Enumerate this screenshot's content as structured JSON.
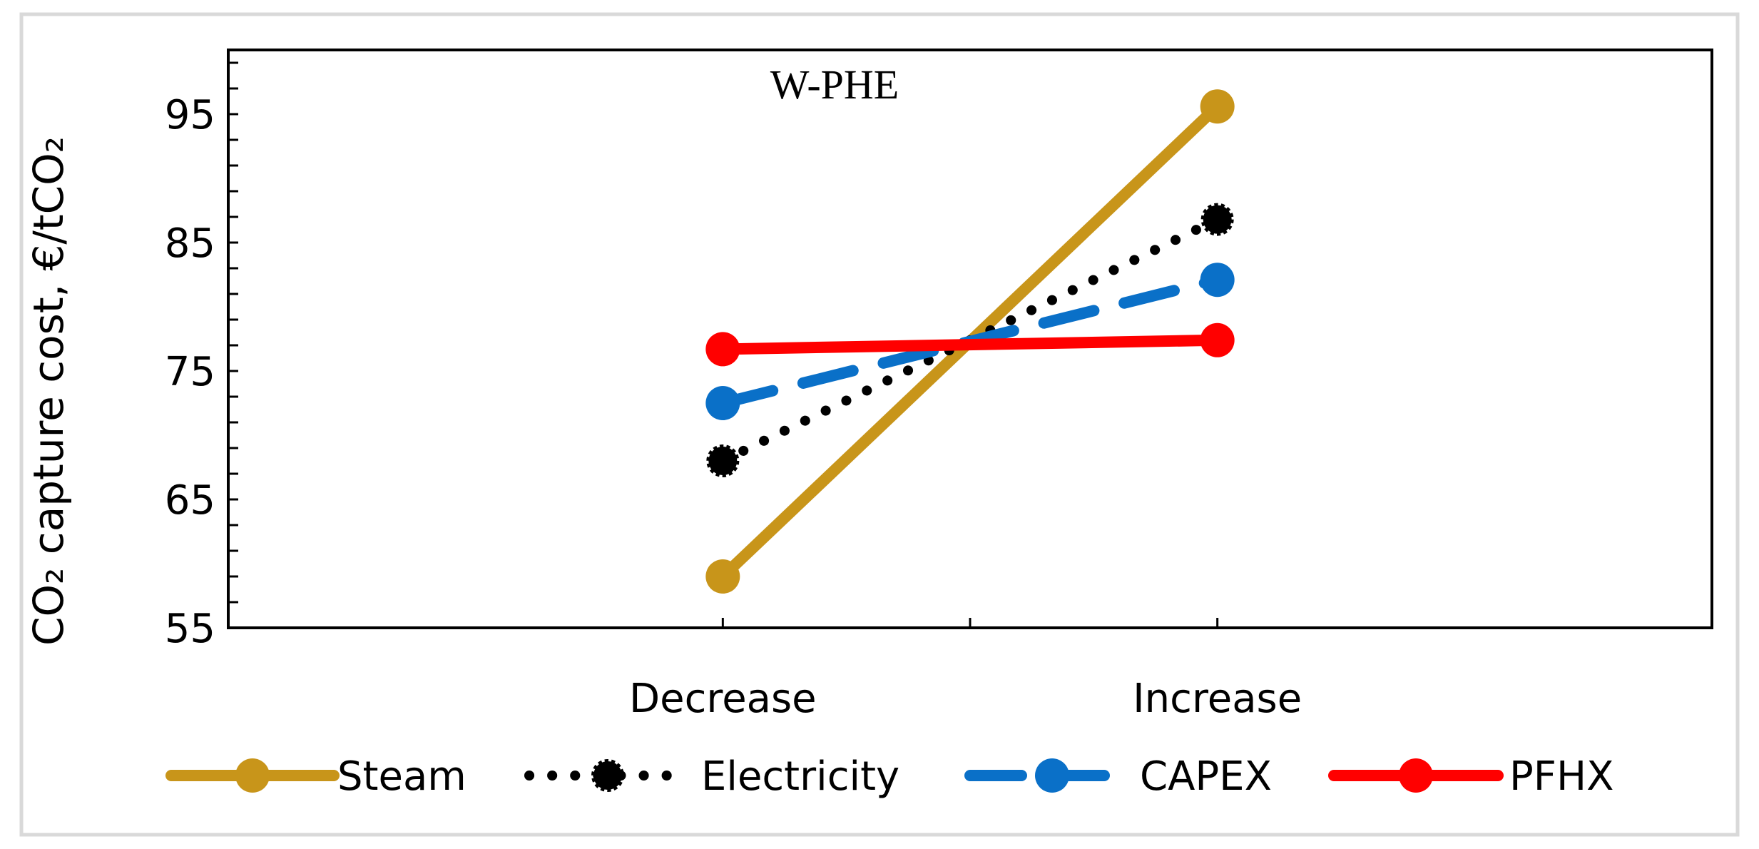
{
  "chart_data": {
    "type": "line",
    "title": "W-PHE",
    "ylabel": "CO₂ capture cost, €/tCO₂",
    "xlabel": "",
    "categories": [
      "Decrease",
      "Increase"
    ],
    "ylim": [
      55,
      100
    ],
    "y_ticks": [
      "55",
      "65",
      "75",
      "85",
      "95"
    ],
    "series": [
      {
        "name": "Steam",
        "values": [
          59,
          95.6
        ],
        "color": "#C8951A",
        "style": "solid"
      },
      {
        "name": "Electricity",
        "values": [
          68,
          86.8
        ],
        "color": "#000000",
        "style": "dotted"
      },
      {
        "name": "CAPEX",
        "values": [
          72.5,
          82.1
        ],
        "color": "#0A70C8",
        "style": "dashed"
      },
      {
        "name": "PFHX",
        "values": [
          76.7,
          77.4
        ],
        "color": "#FF0000",
        "style": "solid"
      }
    ],
    "legend_position": "bottom",
    "grid": false
  }
}
